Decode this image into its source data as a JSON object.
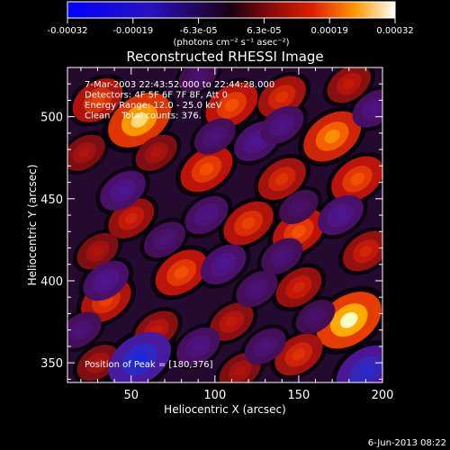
{
  "chart_data": {
    "type": "heatmap",
    "title": "Reconstructed RHESSI Image",
    "xlabel": "Heliocentric X (arcsec)",
    "ylabel": "Heliocentric Y (arcsec)",
    "xlim": [
      12,
      200
    ],
    "ylim": [
      338,
      530
    ],
    "x_ticks": [
      50,
      100,
      150,
      200
    ],
    "y_ticks": [
      350,
      400,
      450,
      500
    ],
    "colorbar": {
      "range": [
        -0.00032,
        0.00032
      ],
      "tick_labels": [
        "-0.00032",
        "-0.00019",
        "-6.3e-05",
        "6.3e-05",
        "0.00019",
        "0.00032"
      ],
      "unit_label": "(photons cm⁻² s⁻¹ asec⁻²)"
    },
    "annotations": [
      "7-Mar-2003 22:43:52.000 to 22:44:28.000",
      "Detectors: 4F 5F 6F 7F 8F, Att 0",
      "Energy Range: 12.0 - 25.0 keV",
      "Clean    Total counts: 376."
    ],
    "peak_label": "Position of Peak = [180,376]",
    "peak_position": [
      180,
      376
    ],
    "footer_date": "6-Jun-2013 08:22",
    "blobs": [
      {
        "x": 30,
        "y": 510,
        "v": 0.00018
      },
      {
        "x": 55,
        "y": 498,
        "v": 0.0003
      },
      {
        "x": 110,
        "y": 507,
        "v": 0.0002
      },
      {
        "x": 140,
        "y": 512,
        "v": 0.00016
      },
      {
        "x": 180,
        "y": 520,
        "v": 0.00012
      },
      {
        "x": 170,
        "y": 488,
        "v": 0.00025
      },
      {
        "x": 65,
        "y": 478,
        "v": 0.0001
      },
      {
        "x": 22,
        "y": 478,
        "v": 0.0001
      },
      {
        "x": 95,
        "y": 468,
        "v": 0.0002
      },
      {
        "x": 140,
        "y": 462,
        "v": 0.00016
      },
      {
        "x": 185,
        "y": 462,
        "v": 0.0002
      },
      {
        "x": 50,
        "y": 438,
        "v": 0.00014
      },
      {
        "x": 120,
        "y": 435,
        "v": 0.00018
      },
      {
        "x": 150,
        "y": 430,
        "v": 0.0002
      },
      {
        "x": 30,
        "y": 418,
        "v": 0.0001
      },
      {
        "x": 190,
        "y": 418,
        "v": 0.00014
      },
      {
        "x": 80,
        "y": 405,
        "v": 0.0002
      },
      {
        "x": 150,
        "y": 396,
        "v": 0.00014
      },
      {
        "x": 35,
        "y": 388,
        "v": 0.00018
      },
      {
        "x": 180,
        "y": 376,
        "v": 0.00032
      },
      {
        "x": 110,
        "y": 375,
        "v": 0.00012
      },
      {
        "x": 65,
        "y": 370,
        "v": 0.00012
      },
      {
        "x": 150,
        "y": 355,
        "v": 0.00016
      },
      {
        "x": 30,
        "y": 350,
        "v": 0.0001
      },
      {
        "x": 115,
        "y": 345,
        "v": 0.0001
      },
      {
        "x": 45,
        "y": 455,
        "v": -0.00014
      },
      {
        "x": 95,
        "y": 440,
        "v": -0.00012
      },
      {
        "x": 125,
        "y": 485,
        "v": -0.00014
      },
      {
        "x": 140,
        "y": 495,
        "v": -0.00012
      },
      {
        "x": 100,
        "y": 488,
        "v": -0.0001
      },
      {
        "x": 150,
        "y": 445,
        "v": -8e-05
      },
      {
        "x": 35,
        "y": 400,
        "v": -0.00014
      },
      {
        "x": 70,
        "y": 425,
        "v": -0.0001
      },
      {
        "x": 105,
        "y": 410,
        "v": -0.00014
      },
      {
        "x": 175,
        "y": 440,
        "v": -0.00014
      },
      {
        "x": 140,
        "y": 415,
        "v": -0.0001
      },
      {
        "x": 55,
        "y": 352,
        "v": -0.0003
      },
      {
        "x": 90,
        "y": 360,
        "v": -0.00012
      },
      {
        "x": 125,
        "y": 395,
        "v": -0.0001
      },
      {
        "x": 190,
        "y": 345,
        "v": -0.00026
      },
      {
        "x": 160,
        "y": 378,
        "v": -8e-05
      },
      {
        "x": 20,
        "y": 370,
        "v": -0.0001
      },
      {
        "x": 90,
        "y": 525,
        "v": -8e-05
      },
      {
        "x": 195,
        "y": 505,
        "v": -0.00012
      },
      {
        "x": 130,
        "y": 360,
        "v": -0.0001
      }
    ]
  }
}
